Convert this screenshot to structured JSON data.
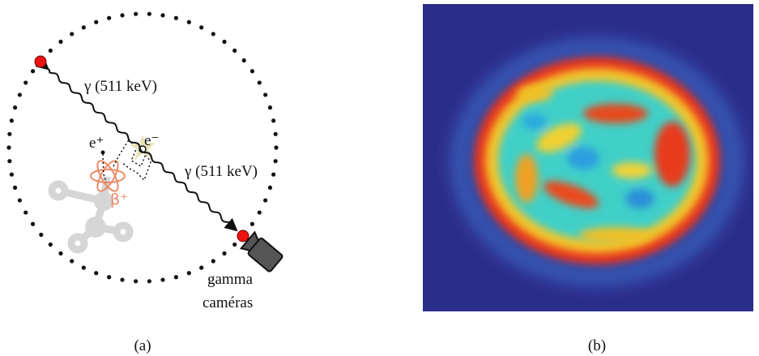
{
  "panel_a": {
    "gamma_label_1": "γ (511 keV)",
    "gamma_label_2": "γ (511 keV)",
    "positron": "e⁺",
    "electron": "e⁻",
    "beta": "β⁺",
    "camera_label": [
      "gamma",
      "caméras"
    ],
    "caption": "(a)"
  },
  "panel_b": {
    "caption": "(b)"
  }
}
